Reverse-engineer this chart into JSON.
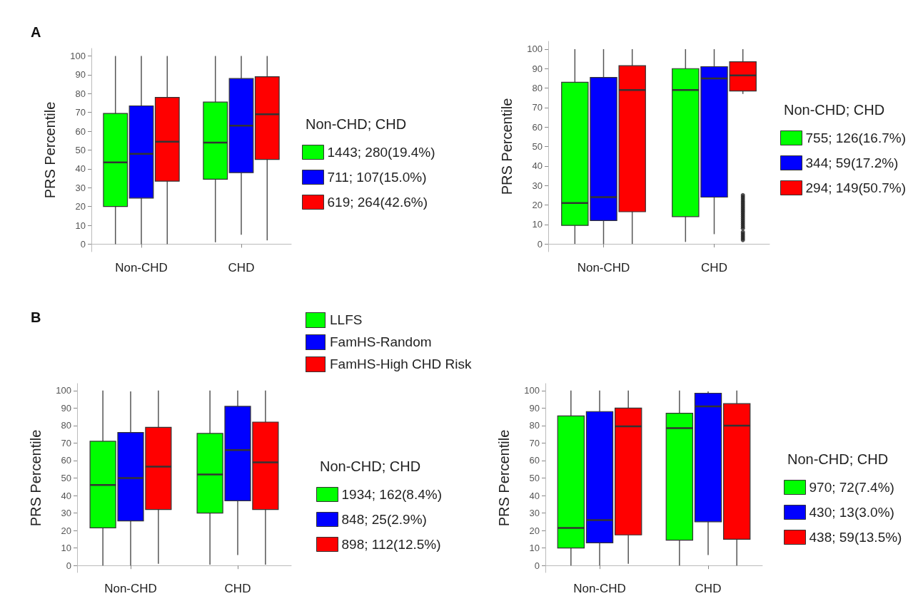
{
  "chart_data": [
    {
      "type": "box",
      "title": "A",
      "categories": [
        "Non-CHD",
        "CHD"
      ],
      "ylabel": "PRS Percentile",
      "ylim": [
        -4,
        104
      ],
      "yticks": [
        0,
        10,
        20,
        30,
        40,
        50,
        60,
        70,
        80,
        90,
        100
      ],
      "legend": "right",
      "legend_title": "Non-CHD; CHD",
      "series": [
        {
          "name": "1443; 280(19.4%)",
          "color": "#00ff00",
          "boxes": [
            {
              "low": 0,
              "q1": 20,
              "median": 43.5,
              "q3": 69.5,
              "high": 100
            },
            {
              "low": 1,
              "q1": 34.5,
              "median": 54,
              "q3": 75.5,
              "high": 100
            }
          ]
        },
        {
          "name": "711; 107(15.0%)",
          "color": "#0000ff",
          "boxes": [
            {
              "low": 0,
              "q1": 24.5,
              "median": 48,
              "q3": 73.5,
              "high": 100
            },
            {
              "low": 5,
              "q1": 38,
              "median": 63,
              "q3": 88,
              "high": 100
            }
          ]
        },
        {
          "name": "619; 264(42.6%)",
          "color": "#ff0000",
          "boxes": [
            {
              "low": 0,
              "q1": 33.5,
              "median": 54.5,
              "q3": 78,
              "high": 100
            },
            {
              "low": 2,
              "q1": 45,
              "median": 69,
              "q3": 89,
              "high": 100
            }
          ]
        }
      ]
    },
    {
      "type": "box",
      "categories": [
        "Non-CHD",
        "CHD"
      ],
      "ylabel": "PRS Percentile",
      "ylim": [
        -4,
        104
      ],
      "yticks": [
        0,
        10,
        20,
        30,
        40,
        50,
        60,
        70,
        80,
        90,
        100
      ],
      "legend": "right",
      "legend_title": "Non-CHD; CHD",
      "series": [
        {
          "name": "755; 126(16.7%)",
          "color": "#00ff00",
          "boxes": [
            {
              "low": 0,
              "q1": 9.5,
              "median": 21,
              "q3": 83,
              "high": 100
            },
            {
              "low": 1,
              "q1": 14,
              "median": 79,
              "q3": 90,
              "high": 100
            }
          ]
        },
        {
          "name": "344; 59(17.2%)",
          "color": "#0000ff",
          "boxes": [
            {
              "low": 0,
              "q1": 12,
              "median": 24,
              "q3": 85.5,
              "high": 100
            },
            {
              "low": 5,
              "q1": 24,
              "median": 85,
              "q3": 91,
              "high": 100
            }
          ]
        },
        {
          "name": "294; 149(50.7%)",
          "color": "#ff0000",
          "boxes": [
            {
              "low": 0,
              "q1": 16.5,
              "median": 79,
              "q3": 91.5,
              "high": 100
            },
            {
              "low": 77,
              "q1": 78.5,
              "median": 86.5,
              "q3": 93.5,
              "high": 100,
              "outliers": [
                2,
                3,
                4,
                5,
                6,
                8,
                9,
                10,
                11,
                12,
                13,
                14,
                15,
                16,
                17,
                18,
                19,
                20,
                21,
                22,
                23,
                24,
                25
              ]
            }
          ]
        }
      ]
    },
    {
      "type": "box",
      "title": "B",
      "categories": [
        "Non-CHD",
        "CHD"
      ],
      "ylabel": "PRS Percentile",
      "ylim": [
        -4,
        104
      ],
      "yticks": [
        0,
        10,
        20,
        30,
        40,
        50,
        60,
        70,
        80,
        90,
        100
      ],
      "legend": "right",
      "legend_title": "Non-CHD; CHD",
      "series": [
        {
          "name": "1934; 162(8.4%)",
          "color": "#00ff00",
          "boxes": [
            {
              "low": 0,
              "q1": 21.5,
              "median": 46,
              "q3": 71,
              "high": 100
            },
            {
              "low": 0.5,
              "q1": 30,
              "median": 52,
              "q3": 75.5,
              "high": 100
            }
          ]
        },
        {
          "name": "848; 25(2.9%)",
          "color": "#0000ff",
          "boxes": [
            {
              "low": 0,
              "q1": 25.5,
              "median": 50,
              "q3": 76,
              "high": 99.5
            },
            {
              "low": 6,
              "q1": 37,
              "median": 66,
              "q3": 91,
              "high": 100
            }
          ]
        },
        {
          "name": "898; 112(12.5%)",
          "color": "#ff0000",
          "boxes": [
            {
              "low": 1,
              "q1": 32,
              "median": 56.5,
              "q3": 79,
              "high": 100
            },
            {
              "low": 0.5,
              "q1": 32,
              "median": 59,
              "q3": 82,
              "high": 100
            }
          ]
        }
      ]
    },
    {
      "type": "box",
      "categories": [
        "Non-CHD",
        "CHD"
      ],
      "ylabel": "PRS Percentile",
      "ylim": [
        -4,
        104
      ],
      "yticks": [
        0,
        10,
        20,
        30,
        40,
        50,
        60,
        70,
        80,
        90,
        100
      ],
      "legend": "right",
      "legend_title": "Non-CHD; CHD",
      "series": [
        {
          "name": "970; 72(7.4%)",
          "color": "#00ff00",
          "boxes": [
            {
              "low": 0,
              "q1": 10,
              "median": 21.5,
              "q3": 85.5,
              "high": 100
            },
            {
              "low": 0,
              "q1": 14.5,
              "median": 78.5,
              "q3": 87,
              "high": 100
            }
          ]
        },
        {
          "name": "430; 13(3.0%)",
          "color": "#0000ff",
          "boxes": [
            {
              "low": 0,
              "q1": 13,
              "median": 26,
              "q3": 88,
              "high": 100
            },
            {
              "low": 6,
              "q1": 25,
              "median": 91,
              "q3": 98.5,
              "high": 99.5
            }
          ]
        },
        {
          "name": "438; 59(13.5%)",
          "color": "#ff0000",
          "boxes": [
            {
              "low": 1,
              "q1": 17.5,
              "median": 79.5,
              "q3": 90,
              "high": 100
            },
            {
              "low": 0,
              "q1": 15,
              "median": 80,
              "q3": 92.5,
              "high": 100
            }
          ]
        }
      ]
    },
    {
      "type": "other",
      "categories": [
        "LLFS",
        "FamHS-Random",
        "FamHS-High CHD Risk"
      ],
      "colors": [
        "#00ff00",
        "#0000ff",
        "#ff0000"
      ]
    }
  ]
}
